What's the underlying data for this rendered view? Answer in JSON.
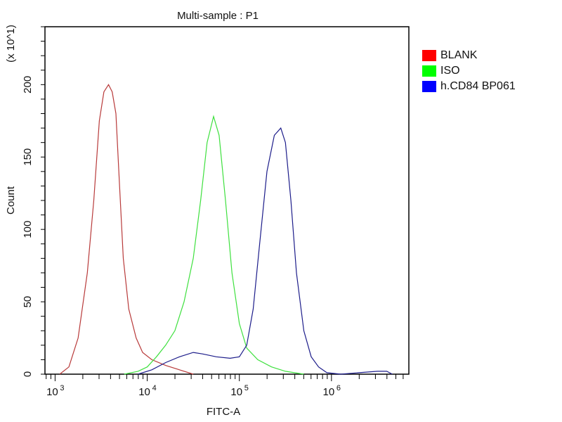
{
  "chart_data": {
    "type": "line",
    "title": "Multi-sample : P1",
    "xlabel": "FITC-A",
    "ylabel": "Count",
    "ylabel_multiplier": "(x 10^1)",
    "xscale": "log",
    "xlim_log10": [
      2.89,
      6.84
    ],
    "ylim": [
      0,
      240
    ],
    "x_tick_labels": [
      {
        "base": "10",
        "exp": "3",
        "log10": 3
      },
      {
        "base": "10",
        "exp": "4",
        "log10": 4
      },
      {
        "base": "10",
        "exp": "5",
        "log10": 5
      },
      {
        "base": "10",
        "exp": "6",
        "log10": 6
      }
    ],
    "y_ticks": [
      0,
      50,
      100,
      150,
      200
    ],
    "legend_position": "right",
    "series": [
      {
        "name": "BLANK",
        "color": "#b83a3a",
        "swatch": "#ff0000",
        "x_log10": [
          3.05,
          3.15,
          3.25,
          3.35,
          3.42,
          3.48,
          3.53,
          3.58,
          3.62,
          3.66,
          3.7,
          3.74,
          3.8,
          3.88,
          3.95,
          4.05,
          4.2,
          4.35,
          4.5
        ],
        "counts": [
          0,
          5,
          25,
          70,
          120,
          175,
          195,
          200,
          195,
          180,
          130,
          80,
          45,
          25,
          15,
          10,
          6,
          3,
          0
        ]
      },
      {
        "name": "ISO",
        "color": "#3ee03e",
        "swatch": "#00ff00",
        "x_log10": [
          3.75,
          3.9,
          4.0,
          4.1,
          4.2,
          4.3,
          4.4,
          4.5,
          4.58,
          4.65,
          4.72,
          4.78,
          4.85,
          4.92,
          5.0,
          5.08,
          5.2,
          5.35,
          5.5,
          5.7
        ],
        "counts": [
          0,
          2,
          5,
          12,
          20,
          30,
          50,
          80,
          120,
          160,
          178,
          165,
          120,
          70,
          35,
          18,
          10,
          5,
          2,
          0
        ]
      },
      {
        "name": "h.CD84 BP061",
        "color": "#1c1c8a",
        "swatch": "#0000ff",
        "x_log10": [
          3.9,
          4.05,
          4.2,
          4.35,
          4.5,
          4.6,
          4.75,
          4.9,
          5.0,
          5.08,
          5.15,
          5.22,
          5.3,
          5.38,
          5.45,
          5.5,
          5.56,
          5.62,
          5.7,
          5.78,
          5.86,
          5.95,
          6.1,
          6.3,
          6.5,
          6.6,
          6.66
        ],
        "counts": [
          0,
          3,
          8,
          12,
          15,
          14,
          12,
          11,
          12,
          20,
          45,
          90,
          140,
          165,
          170,
          160,
          120,
          70,
          30,
          12,
          5,
          1,
          0,
          1,
          2,
          2,
          0
        ]
      }
    ]
  }
}
